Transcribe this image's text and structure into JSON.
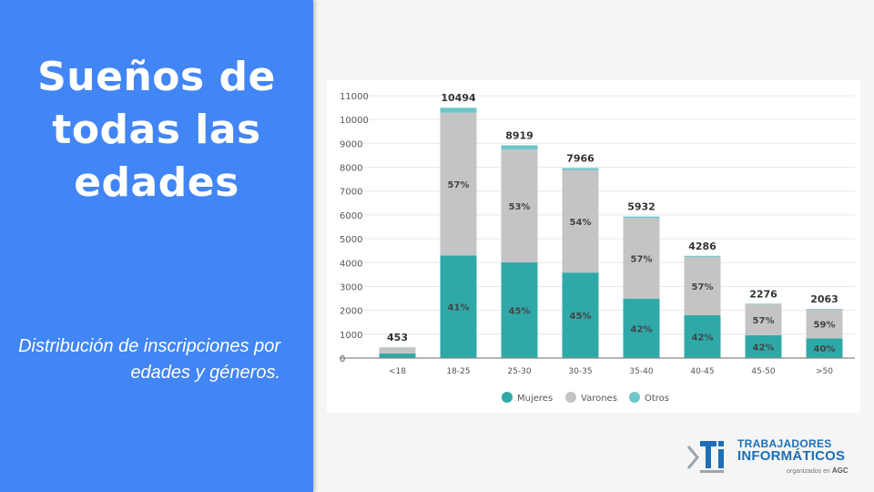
{
  "slide": {
    "title": "Sueños de todas las edades",
    "subtitle": "Distribución de inscripciones por edades y géneros."
  },
  "colors": {
    "panel": "#4285f4",
    "mujeres": "#2fa9a8",
    "varones": "#c4c4c4",
    "otros": "#6cc6cc"
  },
  "chart_data": {
    "type": "bar",
    "stacked": true,
    "categories": [
      "<18",
      "18-25",
      "25-30",
      "30-35",
      "35-40",
      "40-45",
      "45-50",
      ">50"
    ],
    "totals": [
      453,
      10494,
      8919,
      7966,
      5932,
      4286,
      2276,
      2063
    ],
    "series": [
      {
        "name": "Mujeres",
        "percent": [
          null,
          41,
          45,
          45,
          42,
          42,
          42,
          40
        ]
      },
      {
        "name": "Varones",
        "percent": [
          null,
          57,
          53,
          54,
          57,
          57,
          57,
          59
        ]
      },
      {
        "name": "Otros",
        "percent": [
          null,
          2,
          2,
          1,
          1,
          1,
          1,
          1
        ]
      }
    ],
    "segment_labels": {
      "Mujeres": [
        "",
        "41%",
        "45%",
        "45%",
        "42%",
        "42%",
        "42%",
        "40%"
      ],
      "Varones": [
        "",
        "57%",
        "53%",
        "54%",
        "57%",
        "57%",
        "57%",
        "59%"
      ]
    },
    "under18_values": {
      "Mujeres": 190,
      "Varones": 255,
      "Otros": 8
    },
    "yticks": [
      0,
      1000,
      2000,
      3000,
      4000,
      5000,
      6000,
      7000,
      8000,
      9000,
      10000,
      11000
    ],
    "ylim": [
      0,
      11000
    ],
    "grid": true,
    "legend_position": "bottom"
  },
  "logo": {
    "line1": "TRABAJADORES",
    "line2": "INFORMÁTICOS",
    "line3": "organizados en",
    "line3_bold": "AGC",
    "mark": "TI"
  }
}
